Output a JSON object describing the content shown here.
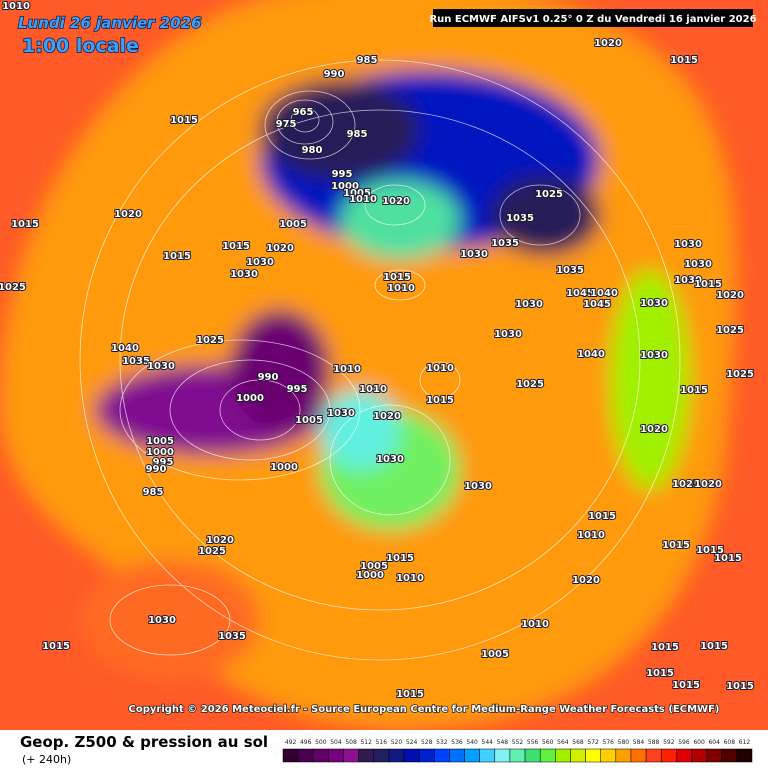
{
  "header": {
    "date": "Lundi 26 janvier 2026",
    "time": "1:00 locale",
    "run": "Run ECMWF AIFSv1 0.25° 0 Z du Vendredi 16 janvier 2026"
  },
  "map": {
    "isobar_labels": [
      1010,
      1020,
      1015,
      990,
      985,
      965,
      975,
      980,
      985,
      995,
      1000,
      1005,
      1010,
      1020,
      1025,
      1035,
      1035,
      1030,
      1035,
      1015,
      1015,
      1020,
      1015,
      1015,
      1025,
      1030,
      1030,
      1005,
      1020,
      1015,
      1010,
      1030,
      1045,
      1040,
      1045,
      1030,
      1030,
      1030,
      1015,
      1020,
      1025,
      1030,
      1030,
      1025,
      1040,
      1035,
      1030,
      990,
      1000,
      995,
      1010,
      1010,
      1010,
      1015,
      1025,
      1040,
      1030,
      1015,
      1025,
      1030,
      1020,
      1005,
      1030,
      1005,
      1000,
      995,
      990,
      985,
      1000,
      1020,
      1025,
      1020,
      1030,
      1015,
      1010,
      1015,
      1015,
      1015,
      1020,
      1025,
      1005,
      1000,
      1015,
      1010,
      1020,
      1030,
      1035,
      1015,
      1010,
      1005,
      1015,
      1015,
      1015,
      1015,
      1015,
      1015
    ]
  },
  "copyright": "Copyright © 2026 Meteociel.fr - Source European Centre for Medium-Range Weather Forecasts (ECMWF)",
  "legend": {
    "title": "Geop. Z500 & pression au sol",
    "subtitle": "(+ 240h)",
    "ticks": [
      492,
      496,
      500,
      504,
      508,
      512,
      516,
      520,
      524,
      528,
      532,
      536,
      540,
      544,
      548,
      552,
      556,
      560,
      564,
      568,
      572,
      576,
      580,
      584,
      588,
      592,
      596,
      600,
      604,
      608,
      612
    ]
  }
}
